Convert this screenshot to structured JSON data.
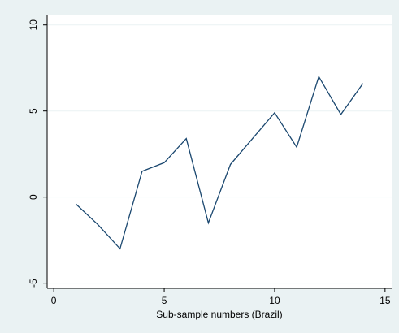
{
  "chart_data": {
    "type": "line",
    "x_label": "Sub-sample numbers (Brazil)",
    "x": [
      1,
      2,
      3,
      4,
      5,
      6,
      7,
      8,
      9,
      10,
      11,
      12,
      13,
      14
    ],
    "series": [
      {
        "color": "#1a476f",
        "values": [
          -0.4,
          -1.6,
          -3.0,
          1.5,
          2.0,
          3.4,
          -1.5,
          1.9,
          3.4,
          4.9,
          2.9,
          7.0,
          4.8,
          6.6
        ]
      }
    ],
    "xlim": [
      -0.3,
      15.3
    ],
    "xticks": [
      0,
      5,
      10,
      15
    ],
    "ylim": [
      -5.3,
      10.6
    ],
    "yticks": [
      -5,
      0,
      5,
      10
    ],
    "grid": true
  }
}
